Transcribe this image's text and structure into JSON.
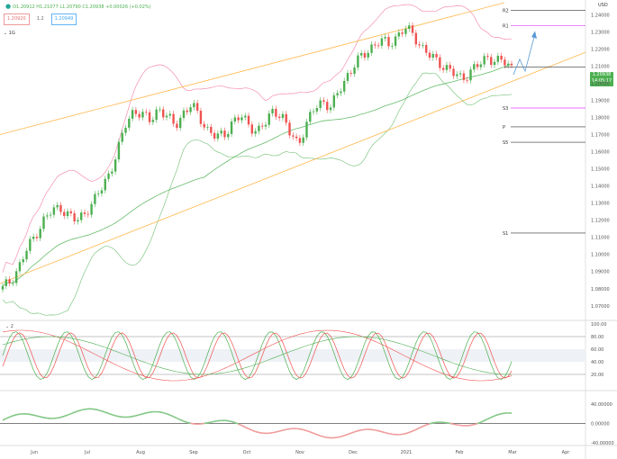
{
  "header": {
    "ohlc_text": "O1.20912 H1.21077 L1.20790 C1.20938 +0.00026 (+0.02%)",
    "indicator_inputs": [
      "1.20920",
      "1.2",
      "1.20949"
    ],
    "currency": "USD",
    "interval_label": "1G"
  },
  "price_axis": {
    "ticks": [
      "1.24000",
      "1.23000",
      "1.22000",
      "1.21000",
      "1.20000",
      "1.19000",
      "1.18000",
      "1.17000",
      "1.16000",
      "1.15000",
      "1.14000",
      "1.13000",
      "1.12000",
      "1.11000",
      "1.10000",
      "1.09000",
      "1.08000",
      "1.07000"
    ],
    "last_price": "1.20938",
    "countdown": "14:05:17"
  },
  "stoch_axis": {
    "ticks": [
      "100.00",
      "80.00",
      "60.00",
      "40.00",
      "20.00"
    ],
    "label": "2"
  },
  "osc_axis": {
    "ticks": [
      "40.00000",
      "0.00000",
      "-40.00000"
    ]
  },
  "time_axis": {
    "ticks": [
      "Jun",
      "Jul",
      "Aug",
      "Sep",
      "Oct",
      "Nov",
      "Dec",
      "2021",
      "Feb",
      "Mar",
      "Apr"
    ]
  },
  "pivots": [
    {
      "label": "R2",
      "value": 1.2425
    },
    {
      "label": "R1",
      "value": 1.2335
    },
    {
      "label": "S3",
      "value": 1.1855
    },
    {
      "label": "P",
      "value": 1.1745
    },
    {
      "label": "S5",
      "value": 1.1655
    },
    {
      "label": "S1",
      "value": 1.1125
    }
  ],
  "colors": {
    "up": "#4caf50",
    "down": "#ef5350",
    "bb_upper": "#f48fb1",
    "bb_lower": "#81c784",
    "channel": "#ffb74d",
    "accent": "#5b9bd5",
    "magenta": "#e040fb"
  },
  "chart_data": {
    "type": "candlestick",
    "ylim": [
      1.062,
      1.247
    ],
    "x": [
      "Jun",
      "Jul",
      "Aug",
      "Sep",
      "Oct",
      "Nov",
      "Dec",
      "2021",
      "Feb",
      "Mar",
      "Apr"
    ],
    "close_series": [
      1.08,
      1.085,
      1.093,
      1.103,
      1.112,
      1.12,
      1.125,
      1.128,
      1.123,
      1.119,
      1.125,
      1.13,
      1.138,
      1.148,
      1.16,
      1.176,
      1.185,
      1.181,
      1.178,
      1.186,
      1.18,
      1.175,
      1.183,
      1.187,
      1.18,
      1.173,
      1.168,
      1.17,
      1.178,
      1.18,
      1.176,
      1.172,
      1.176,
      1.185,
      1.181,
      1.17,
      1.165,
      1.176,
      1.185,
      1.19,
      1.186,
      1.195,
      1.205,
      1.212,
      1.216,
      1.222,
      1.225,
      1.222,
      1.228,
      1.232,
      1.228,
      1.222,
      1.216,
      1.212,
      1.21,
      1.205,
      1.202,
      1.208,
      1.21,
      1.215,
      1.214,
      1.212,
      1.209
    ],
    "stochastic": {
      "range": [
        0,
        100
      ],
      "levels": [
        80,
        20
      ]
    },
    "oscillator": {
      "range": [
        -40,
        60
      ]
    }
  }
}
